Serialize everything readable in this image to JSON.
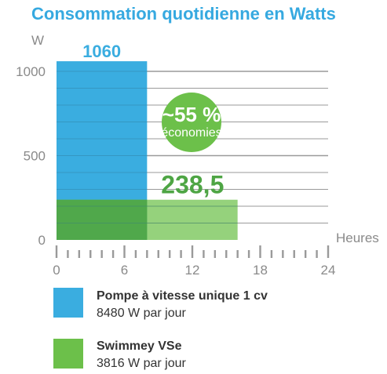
{
  "colors": {
    "blue": "#3aade0",
    "green": "#6cc04a",
    "green_dark": "#4ea544",
    "title": "#36a9e0",
    "axis_text": "#8a8a8a",
    "grid": "#9a9a9a",
    "legend_text": "#333333"
  },
  "chart_data": {
    "type": "bar",
    "title": "Consommation quotidienne en Watts",
    "xlabel": "Heures",
    "ylabel": "W",
    "xlim": [
      0,
      24
    ],
    "ylim": [
      0,
      1060
    ],
    "grid": true,
    "x_ticks": [
      "0",
      "6",
      "12",
      "18",
      "24"
    ],
    "y_ticks": [
      "0",
      "500",
      "1000"
    ],
    "series": [
      {
        "name": "Pompe à vitesse unique 1 cv",
        "value": 1060,
        "value_label": "1060",
        "x_start": 0,
        "x_end": 8,
        "color": "#3aade0",
        "daily_total": "8480 W par jour"
      },
      {
        "name": "Swimmey VSe",
        "value": 238.5,
        "value_label": "238,5",
        "x_start": 0,
        "x_end": 16,
        "color": "#6cc04a",
        "daily_total": "3816 W par jour"
      }
    ],
    "annotation": {
      "main": "~55 %",
      "sub": "économies"
    }
  }
}
